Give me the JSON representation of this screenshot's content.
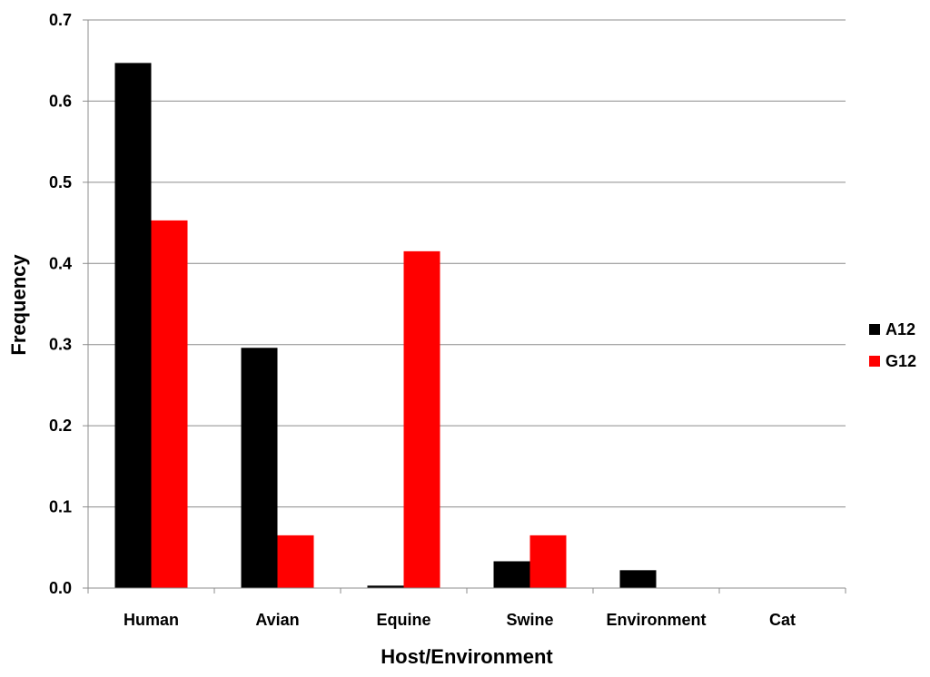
{
  "chart_data": {
    "type": "bar",
    "title": "",
    "xlabel": "Host/Environment",
    "ylabel": "Frequency",
    "categories": [
      "Human",
      "Avian",
      "Equine",
      "Swine",
      "Environment",
      "Cat"
    ],
    "ylim": [
      0,
      0.7
    ],
    "yticks": [
      "0.0",
      "0.1",
      "0.2",
      "0.3",
      "0.4",
      "0.5",
      "0.6",
      "0.7"
    ],
    "grid": "horizontal",
    "legend_position": "right",
    "series": [
      {
        "name": "A12",
        "color": "#000000",
        "values": [
          0.647,
          0.296,
          0.003,
          0.033,
          0.022,
          0
        ]
      },
      {
        "name": "G12",
        "color": "#ff0000",
        "values": [
          0.453,
          0.065,
          0.415,
          0.065,
          0,
          0
        ]
      }
    ]
  }
}
